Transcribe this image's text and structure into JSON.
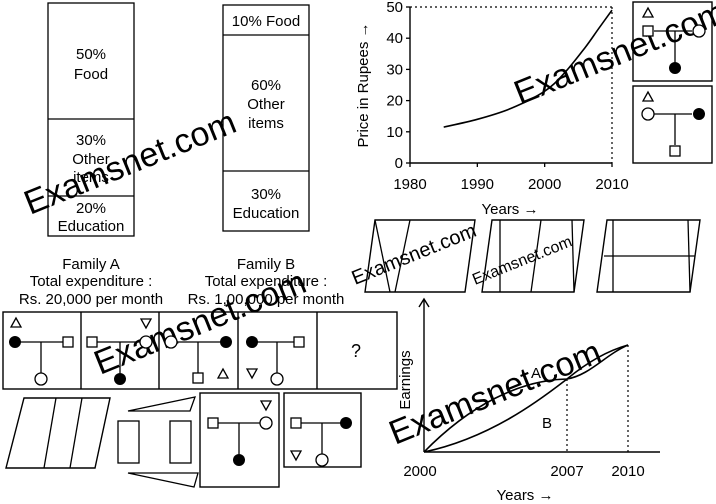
{
  "bars": {
    "family_a": {
      "segments": [
        {
          "percent": "50%",
          "label": "Food"
        },
        {
          "percent": "30%",
          "label_lines": [
            "Other",
            "items"
          ]
        },
        {
          "percent": "20%",
          "label": "Education"
        }
      ],
      "caption": [
        "Family A",
        "Total expenditure :",
        "Rs. 20,000 per month"
      ]
    },
    "family_b": {
      "segments": [
        {
          "text": "10% Food"
        },
        {
          "percent": "60%",
          "label_lines": [
            "Other",
            "items"
          ]
        },
        {
          "percent": "30%",
          "label": "Education"
        }
      ],
      "caption": [
        "Family B",
        "Total expenditure :",
        "Rs. 1,00,000 per month"
      ]
    }
  },
  "chart_data": [
    {
      "type": "line",
      "xlabel": "Years →",
      "ylabel": "Price in Rupees →",
      "x_ticks": [
        1980,
        1990,
        2000,
        2010
      ],
      "y_ticks": [
        0,
        10,
        20,
        30,
        40,
        50
      ],
      "xlim": [
        1980,
        2010
      ],
      "ylim": [
        0,
        50
      ],
      "series": [
        {
          "points": [
            [
              1985,
              11.5
            ],
            [
              1990,
              14
            ],
            [
              1995,
              17.5
            ],
            [
              2000,
              23
            ],
            [
              2003,
              29
            ],
            [
              2006,
              37
            ],
            [
              2008,
              43
            ],
            [
              2010,
              49
            ]
          ]
        }
      ],
      "guides": "dotted lines at y = 50 and x = 2010"
    },
    {
      "type": "line",
      "ylabel": "Earnings",
      "xlabel": "Years →",
      "x_ticks": [
        2000,
        2007,
        2010
      ],
      "series": [
        {
          "name": "A",
          "shape": "concave, above B until 2007"
        },
        {
          "name": "B",
          "shape": "convex, below A until 2007"
        }
      ],
      "crossing_year": 2007,
      "guides": "dotted verticals at 2007 and 2010"
    }
  ],
  "question_mark": "?",
  "watermark": "Examsnet.com"
}
